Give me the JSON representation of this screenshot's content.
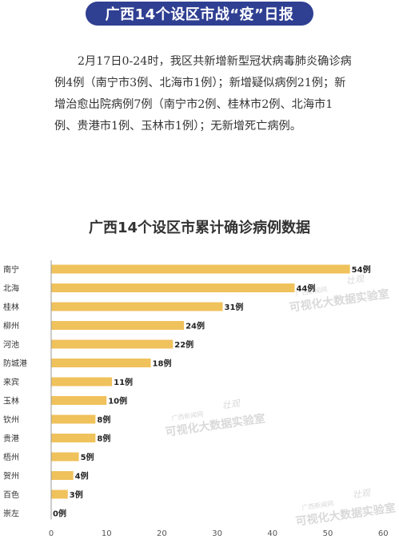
{
  "header": {
    "banner_title": "广西14个设区市战“疫”日报"
  },
  "report": {
    "text": "2月17日0-24时，我区共新增新型冠状病毒肺炎确诊病例4例（南宁市3例、北海市1例）；新增疑似病例21例；新增治愈出院病例7例（南宁市2例、桂林市2例、北海市1例、贵港市1例、玉林市1例）；无新增死亡病例。"
  },
  "watermark": {
    "line1": "广西新闻网",
    "line2": "可视化大数据实验室",
    "mark": "壮观"
  },
  "chart_data": {
    "type": "bar",
    "orientation": "horizontal",
    "title": "广西14个设区市累计确诊病例数据",
    "categories": [
      "南宁",
      "北海",
      "桂林",
      "柳州",
      "河池",
      "防城港",
      "来宾",
      "玉林",
      "钦州",
      "贵港",
      "梧州",
      "贺州",
      "百色",
      "崇左"
    ],
    "values": [
      54,
      44,
      31,
      24,
      22,
      18,
      11,
      10,
      8,
      8,
      5,
      4,
      3,
      0
    ],
    "data_labels": [
      "54例",
      "44例",
      "31例",
      "24例",
      "22例",
      "18例",
      "11例",
      "10例",
      "8例",
      "8例",
      "5例",
      "4例",
      "3例",
      "0例"
    ],
    "xlim": [
      0,
      60
    ],
    "xticks": [
      0,
      10,
      20,
      30,
      40,
      50,
      60
    ],
    "xlabel": "",
    "ylabel": "",
    "grid": false,
    "legend": "none",
    "bar_color": "#f0c25c"
  }
}
